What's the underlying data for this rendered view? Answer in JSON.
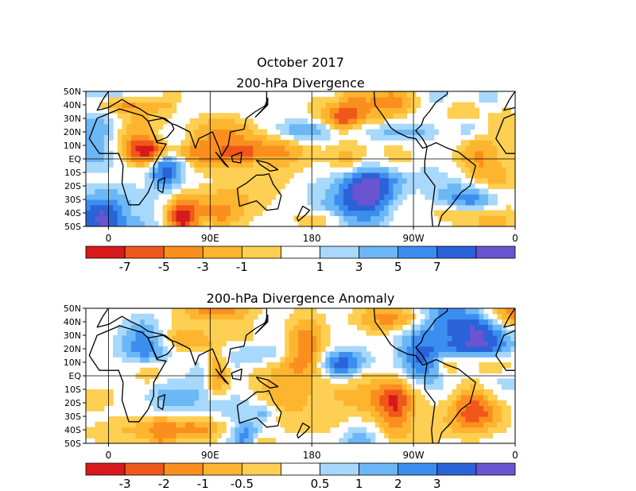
{
  "figure_title": "October 2017",
  "chart_data": [
    {
      "type": "heatmap",
      "title": "200-hPa Divergence",
      "lat_ticks": [
        "50N",
        "40N",
        "30N",
        "20N",
        "10N",
        "EQ",
        "10S",
        "20S",
        "30S",
        "40S",
        "50S"
      ],
      "lon_ticks": [
        "0",
        "90E",
        "180",
        "90W",
        "0"
      ],
      "ylim": [
        -50,
        50
      ],
      "xlim": [
        -20,
        360
      ],
      "colorbar": {
        "colors": [
          "#d7191c",
          "#f0571a",
          "#fb8f1e",
          "#fdb52f",
          "#fdcf52",
          "#ffffff",
          "#a8d8fb",
          "#6cb7f5",
          "#3b8ef0",
          "#2a62d8",
          "#6a55d0"
        ],
        "labels": [
          "-7",
          "-5",
          "-3",
          "-1",
          "1",
          "3",
          "5",
          "7"
        ]
      },
      "contour_lines": [
        "0"
      ]
    },
    {
      "type": "heatmap",
      "title": "200-hPa Divergence Anomaly",
      "lat_ticks": [
        "50N",
        "40N",
        "30N",
        "20N",
        "10N",
        "EQ",
        "10S",
        "20S",
        "30S",
        "40S",
        "50S"
      ],
      "lon_ticks": [
        "0",
        "90E",
        "180",
        "90W",
        "0"
      ],
      "ylim": [
        -50,
        50
      ],
      "xlim": [
        -20,
        360
      ],
      "colorbar": {
        "colors": [
          "#d7191c",
          "#f0571a",
          "#fb8f1e",
          "#fdb52f",
          "#fdcf52",
          "#ffffff",
          "#a8d8fb",
          "#6cb7f5",
          "#3b8ef0",
          "#2a62d8",
          "#6a55d0"
        ],
        "labels": [
          "-3",
          "-2",
          "-1",
          "-0.5",
          "0.5",
          "1",
          "2",
          "3"
        ]
      },
      "contour_lines": [
        "0"
      ]
    }
  ]
}
